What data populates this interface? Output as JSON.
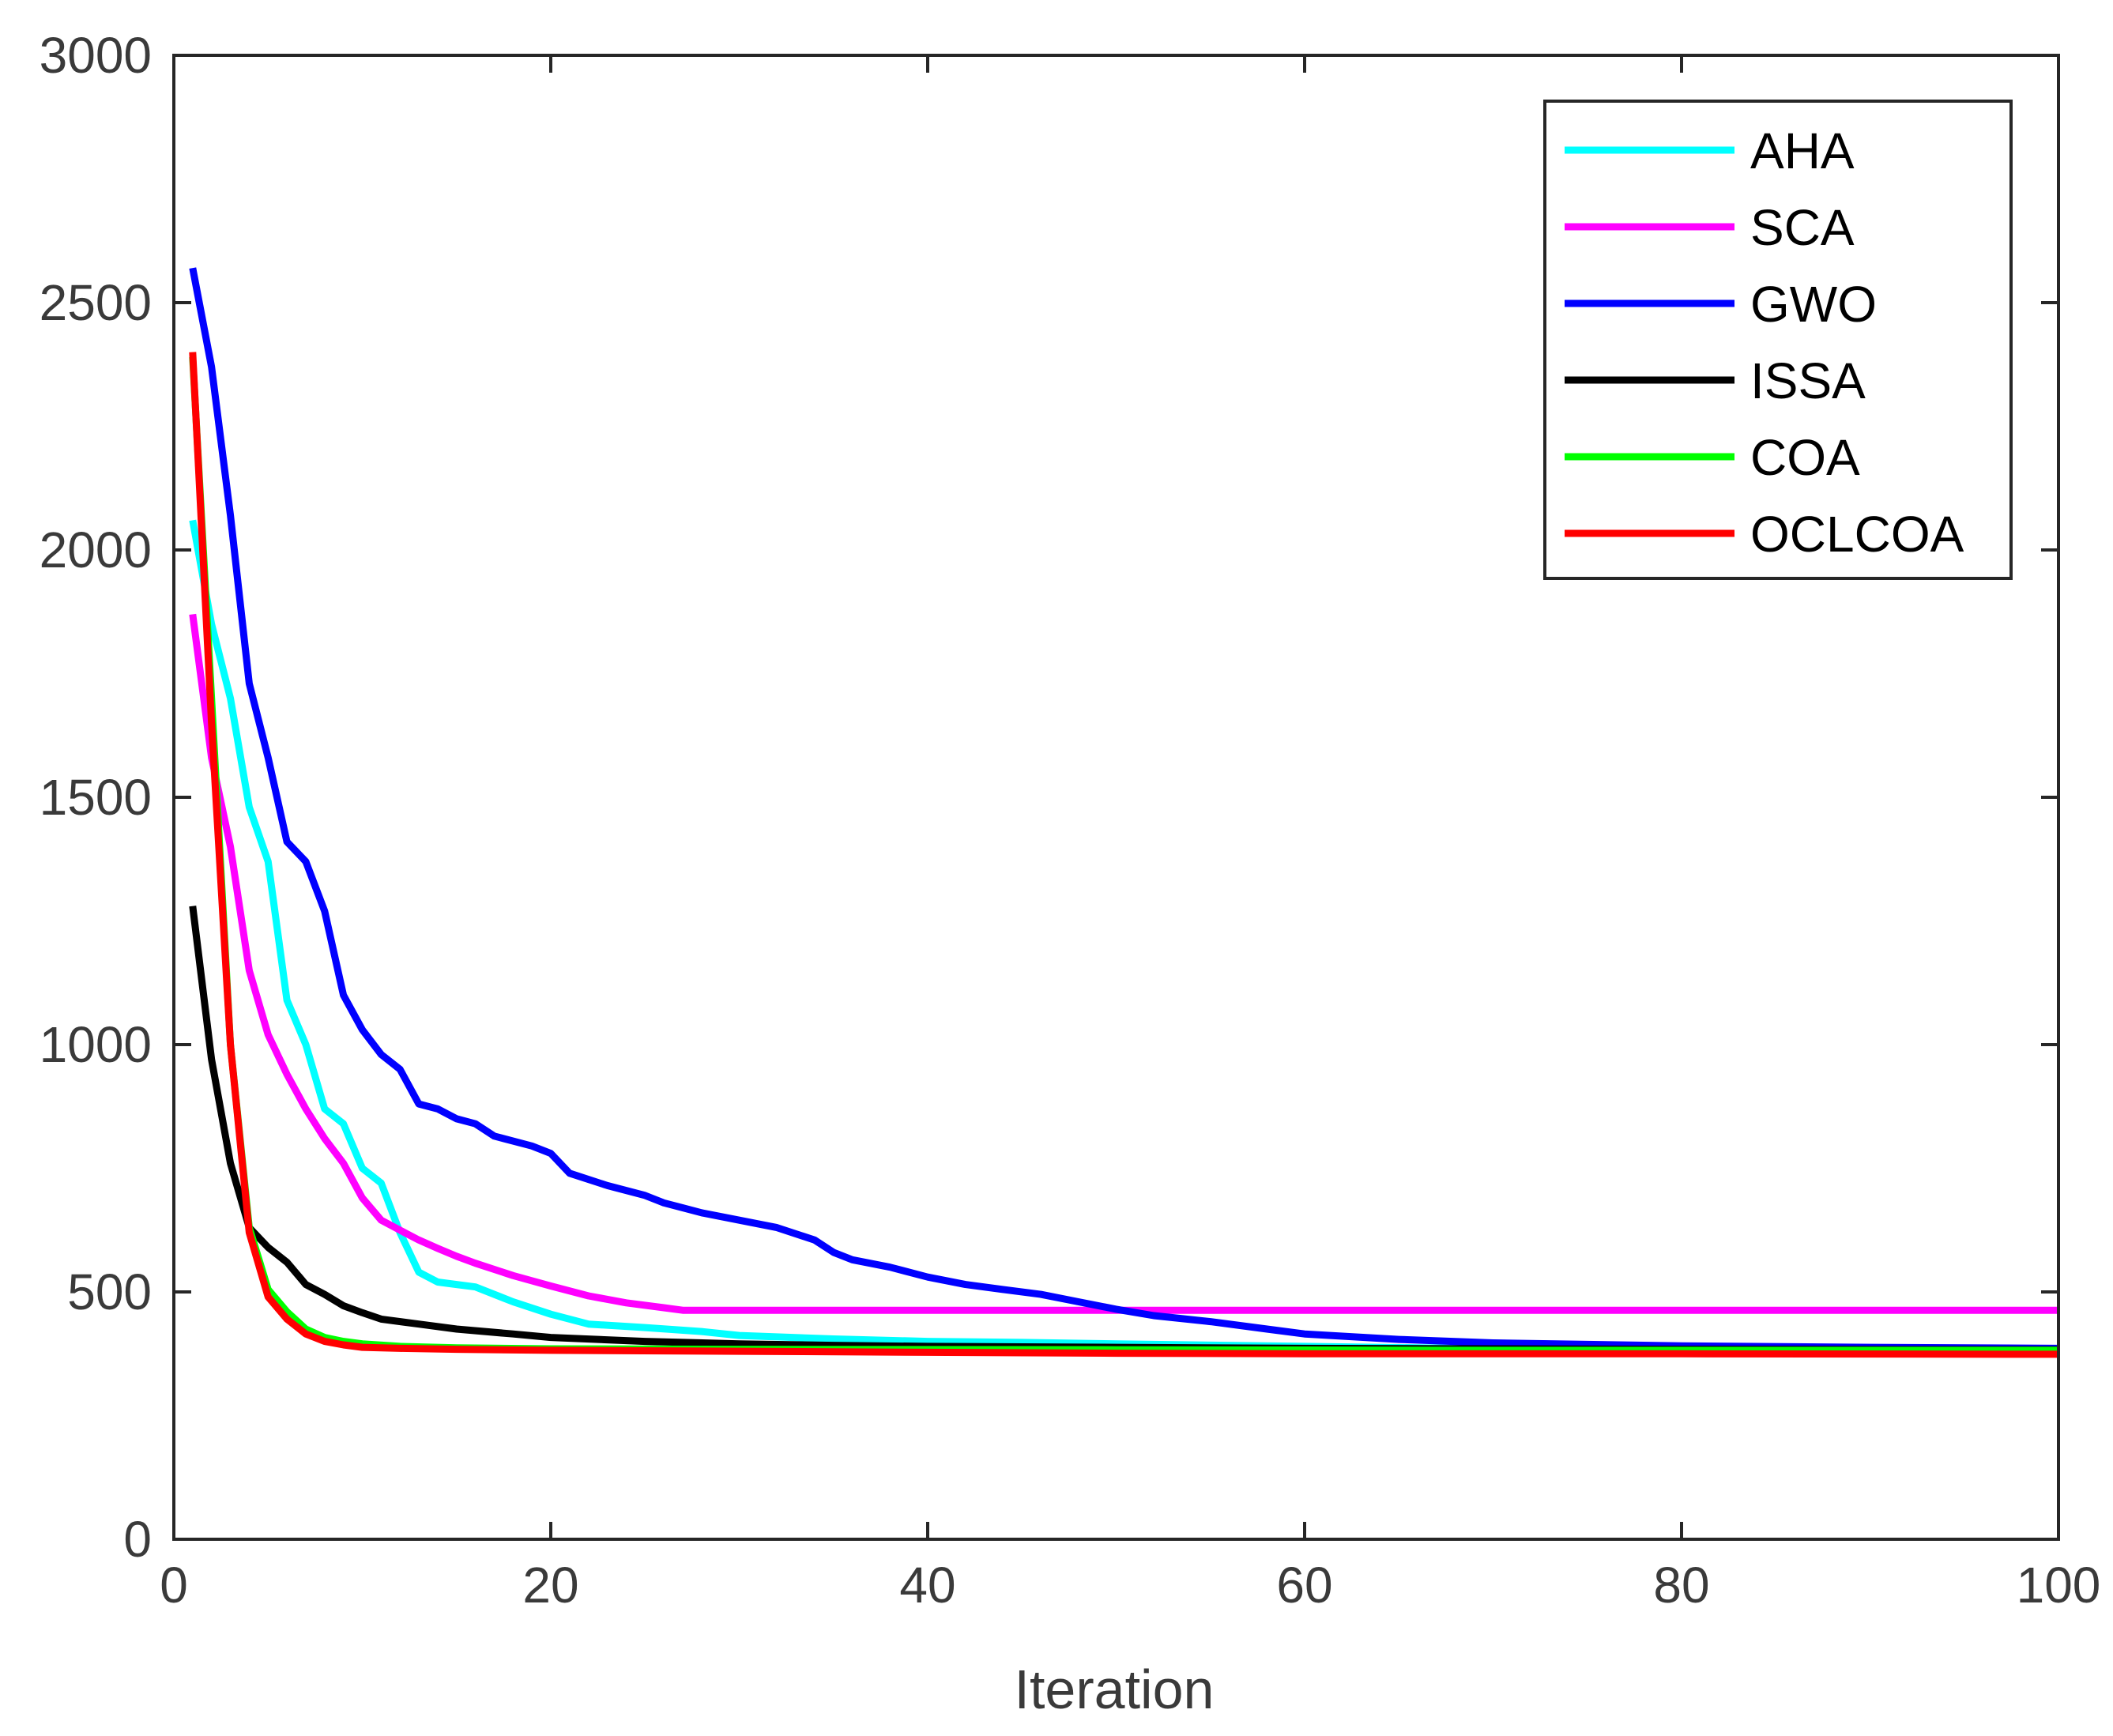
{
  "chart_data": {
    "type": "line",
    "title": "",
    "xlabel": "Iteration",
    "ylabel": "",
    "xlim": [
      0,
      100
    ],
    "ylim": [
      0,
      3000
    ],
    "xticks": [
      "0",
      "20",
      "40",
      "60",
      "80",
      "100"
    ],
    "yticks": [
      "0",
      "500",
      "1000",
      "1500",
      "2000",
      "2500",
      "3000"
    ],
    "grid": false,
    "legend_position": "top-right",
    "series": [
      {
        "name": "AHA",
        "color": "#00ffff",
        "points": [
          [
            1,
            2060
          ],
          [
            2,
            1850
          ],
          [
            3,
            1700
          ],
          [
            4,
            1480
          ],
          [
            5,
            1370
          ],
          [
            6,
            1090
          ],
          [
            7,
            1000
          ],
          [
            8,
            870
          ],
          [
            9,
            840
          ],
          [
            10,
            750
          ],
          [
            11,
            720
          ],
          [
            12,
            620
          ],
          [
            13,
            540
          ],
          [
            14,
            520
          ],
          [
            15,
            515
          ],
          [
            16,
            510
          ],
          [
            18,
            480
          ],
          [
            20,
            455
          ],
          [
            22,
            435
          ],
          [
            25,
            428
          ],
          [
            28,
            420
          ],
          [
            30,
            412
          ],
          [
            35,
            405
          ],
          [
            40,
            400
          ],
          [
            45,
            398
          ],
          [
            50,
            395
          ],
          [
            60,
            390
          ],
          [
            70,
            385
          ],
          [
            80,
            383
          ],
          [
            90,
            382
          ],
          [
            100,
            381
          ]
        ]
      },
      {
        "name": "SCA",
        "color": "#ff00ff",
        "points": [
          [
            1,
            1870
          ],
          [
            2,
            1580
          ],
          [
            3,
            1400
          ],
          [
            4,
            1150
          ],
          [
            5,
            1020
          ],
          [
            6,
            940
          ],
          [
            7,
            870
          ],
          [
            8,
            810
          ],
          [
            9,
            760
          ],
          [
            10,
            690
          ],
          [
            11,
            645
          ],
          [
            12,
            625
          ],
          [
            13,
            605
          ],
          [
            14,
            588
          ],
          [
            15,
            572
          ],
          [
            16,
            558
          ],
          [
            18,
            533
          ],
          [
            20,
            512
          ],
          [
            22,
            492
          ],
          [
            24,
            478
          ],
          [
            26,
            468
          ],
          [
            27,
            463
          ],
          [
            30,
            463
          ],
          [
            50,
            463
          ],
          [
            100,
            463
          ]
        ]
      },
      {
        "name": "GWO",
        "color": "#0000ff",
        "points": [
          [
            1,
            2570
          ],
          [
            2,
            2370
          ],
          [
            3,
            2070
          ],
          [
            4,
            1730
          ],
          [
            5,
            1580
          ],
          [
            6,
            1410
          ],
          [
            7,
            1370
          ],
          [
            8,
            1270
          ],
          [
            9,
            1100
          ],
          [
            10,
            1030
          ],
          [
            11,
            980
          ],
          [
            12,
            950
          ],
          [
            13,
            880
          ],
          [
            14,
            870
          ],
          [
            15,
            850
          ],
          [
            16,
            840
          ],
          [
            17,
            815
          ],
          [
            19,
            795
          ],
          [
            20,
            780
          ],
          [
            21,
            740
          ],
          [
            23,
            715
          ],
          [
            25,
            695
          ],
          [
            26,
            680
          ],
          [
            28,
            660
          ],
          [
            30,
            645
          ],
          [
            32,
            630
          ],
          [
            34,
            605
          ],
          [
            35,
            580
          ],
          [
            36,
            565
          ],
          [
            38,
            550
          ],
          [
            40,
            530
          ],
          [
            42,
            515
          ],
          [
            44,
            505
          ],
          [
            46,
            495
          ],
          [
            48,
            480
          ],
          [
            50,
            465
          ],
          [
            52,
            452
          ],
          [
            55,
            440
          ],
          [
            58,
            425
          ],
          [
            60,
            415
          ],
          [
            65,
            404
          ],
          [
            70,
            397
          ],
          [
            80,
            391
          ],
          [
            90,
            388
          ],
          [
            100,
            386
          ]
        ]
      },
      {
        "name": "ISSA",
        "color": "#000000",
        "points": [
          [
            1,
            1280
          ],
          [
            2,
            970
          ],
          [
            3,
            760
          ],
          [
            4,
            630
          ],
          [
            5,
            590
          ],
          [
            6,
            560
          ],
          [
            7,
            515
          ],
          [
            8,
            495
          ],
          [
            9,
            472
          ],
          [
            10,
            458
          ],
          [
            11,
            445
          ],
          [
            13,
            435
          ],
          [
            15,
            425
          ],
          [
            18,
            415
          ],
          [
            20,
            408
          ],
          [
            25,
            400
          ],
          [
            30,
            395
          ],
          [
            35,
            392
          ],
          [
            40,
            390
          ],
          [
            50,
            388
          ],
          [
            60,
            386
          ],
          [
            70,
            385
          ],
          [
            80,
            384
          ],
          [
            100,
            383
          ]
        ]
      },
      {
        "name": "COA",
        "color": "#00ff00",
        "points": [
          [
            1,
            2390
          ],
          [
            2,
            1700
          ],
          [
            3,
            1000
          ],
          [
            4,
            630
          ],
          [
            5,
            505
          ],
          [
            6,
            460
          ],
          [
            7,
            425
          ],
          [
            8,
            408
          ],
          [
            9,
            400
          ],
          [
            10,
            395
          ],
          [
            12,
            390
          ],
          [
            15,
            387
          ],
          [
            20,
            385
          ],
          [
            30,
            384
          ],
          [
            50,
            383
          ],
          [
            70,
            382
          ],
          [
            100,
            382
          ]
        ]
      },
      {
        "name": "OCLCOA",
        "color": "#ff0000",
        "points": [
          [
            1,
            2400
          ],
          [
            2,
            1650
          ],
          [
            3,
            1000
          ],
          [
            4,
            620
          ],
          [
            5,
            490
          ],
          [
            6,
            445
          ],
          [
            7,
            415
          ],
          [
            8,
            400
          ],
          [
            9,
            393
          ],
          [
            10,
            388
          ],
          [
            12,
            386
          ],
          [
            15,
            384
          ],
          [
            20,
            382
          ],
          [
            30,
            380
          ],
          [
            40,
            378
          ],
          [
            50,
            376
          ],
          [
            60,
            375
          ],
          [
            70,
            375
          ],
          [
            80,
            375
          ],
          [
            100,
            374
          ]
        ]
      }
    ]
  }
}
